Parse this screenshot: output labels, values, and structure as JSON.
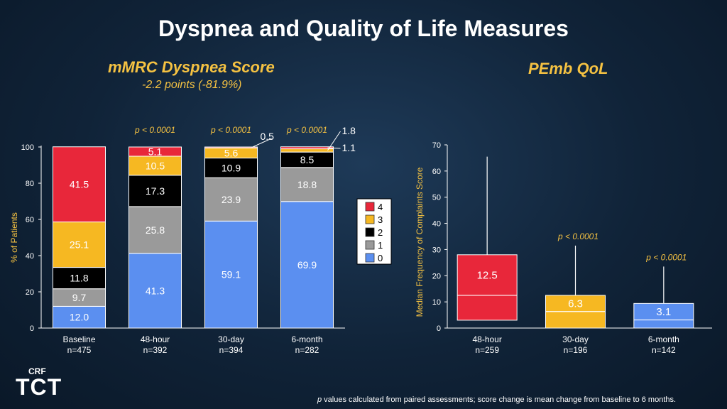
{
  "page": {
    "title": "Dyspnea and Quality of Life Measures",
    "left_title": "mMRC Dyspnea Score",
    "left_note": "-2.2 points (-81.9%)",
    "right_title": "PEmb QoL",
    "footnote_p": "p",
    "footnote_rest": " values calculated from paired assessments; score change is mean change from baseline to 6 months.",
    "logo_crf": "CRF",
    "logo_tct": "TCT"
  },
  "chart_data": [
    {
      "type": "bar",
      "stacked": true,
      "ylabel": "% of Patients",
      "ylim": [
        0,
        100
      ],
      "yticks": [
        0,
        20,
        40,
        60,
        80,
        100
      ],
      "categories": [
        "Baseline",
        "48-hour",
        "30-day",
        "6-month"
      ],
      "category_n": [
        "n=475",
        "n=392",
        "n=394",
        "n=282"
      ],
      "series": [
        {
          "name": "0",
          "color": "#5b8ff0",
          "values": [
            12.0,
            41.3,
            59.1,
            69.9
          ]
        },
        {
          "name": "1",
          "color": "#9a9a9a",
          "values": [
            9.7,
            25.8,
            23.9,
            18.8
          ]
        },
        {
          "name": "2",
          "color": "#000000",
          "values": [
            11.8,
            17.3,
            10.9,
            8.5
          ]
        },
        {
          "name": "3",
          "color": "#f6b822",
          "values": [
            25.1,
            10.5,
            5.6,
            1.8
          ]
        },
        {
          "name": "4",
          "color": "#e8273a",
          "values": [
            41.5,
            5.1,
            0.5,
            1.1
          ]
        }
      ],
      "p_values": [
        "",
        "p < 0.0001",
        "p < 0.0001",
        "p < 0.0001"
      ],
      "legend_order": [
        "4",
        "3",
        "2",
        "1",
        "0"
      ],
      "legend_position": "right"
    },
    {
      "type": "box",
      "ylabel": "Median Frequency of Complaints Score",
      "ylim": [
        0,
        70
      ],
      "yticks": [
        0,
        10,
        20,
        30,
        40,
        50,
        60,
        70
      ],
      "categories": [
        "48-hour",
        "30-day",
        "6-month"
      ],
      "category_n": [
        "n=259",
        "n=196",
        "n=142"
      ],
      "boxes": [
        {
          "median": 12.5,
          "q1": 3.0,
          "q3": 28.0,
          "whisker_low": 3.0,
          "whisker_high": 65.5,
          "color": "#e8273a",
          "label": "12.5",
          "p_value": ""
        },
        {
          "median": 6.3,
          "q1": 0,
          "q3": 12.5,
          "whisker_low": 0,
          "whisker_high": 31.5,
          "color": "#f6b822",
          "label": "6.3",
          "p_value": "p < 0.0001"
        },
        {
          "median": 3.1,
          "q1": 0,
          "q3": 9.4,
          "whisker_low": 0,
          "whisker_high": 23.5,
          "color": "#5b8ff0",
          "label": "3.1",
          "p_value": "p < 0.0001"
        }
      ]
    }
  ]
}
